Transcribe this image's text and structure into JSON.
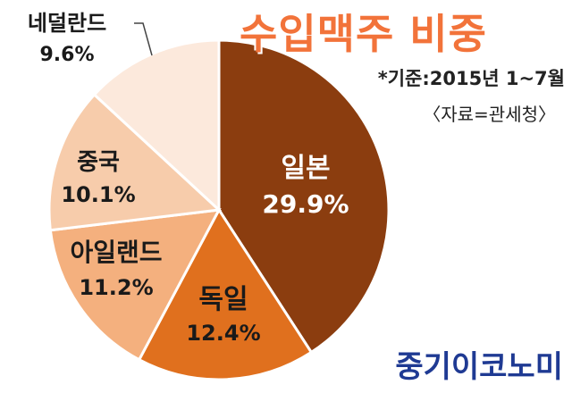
{
  "title": "수입맥주 비중",
  "note": "*기준:2015년 1~7월",
  "source": "〈자료=관세청〉",
  "brand": "중기이코노미",
  "chart_data": {
    "type": "pie",
    "title": "수입맥주 비중",
    "slices": [
      {
        "label": "일본",
        "value": 29.9,
        "value_label": "29.9%",
        "color": "#8b3d0f"
      },
      {
        "label": "독일",
        "value": 12.4,
        "value_label": "12.4%",
        "color": "#e0701e"
      },
      {
        "label": "아일랜드",
        "value": 11.2,
        "value_label": "11.2%",
        "color": "#f4b07e"
      },
      {
        "label": "중국",
        "value": 10.1,
        "value_label": "10.1%",
        "color": "#f7ccab"
      },
      {
        "label": "네덜란드",
        "value": 9.6,
        "value_label": "9.6%",
        "color": "#fce9dc"
      }
    ]
  }
}
